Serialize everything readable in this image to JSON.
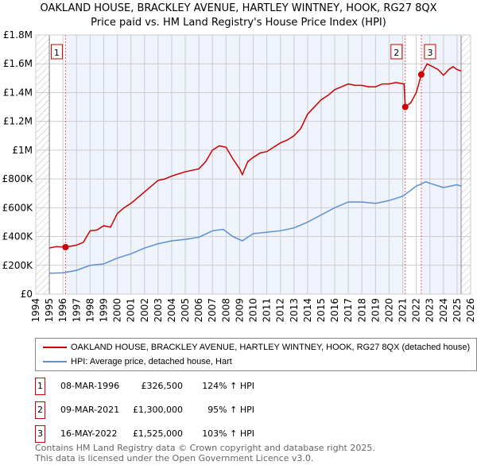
{
  "title": "OAKLAND HOUSE, BRACKLEY AVENUE, HARTLEY WINTNEY, HOOK, RG27 8QX",
  "subtitle": "Price paid vs. HM Land Registry's House Price Index (HPI)",
  "legend": {
    "property": "OAKLAND HOUSE, BRACKLEY AVENUE, HARTLEY WINTNEY, HOOK, RG27 8QX (detached house)",
    "hpi": "HPI: Average price, detached house, Hart"
  },
  "colors": {
    "property": "#cc0000",
    "hpi": "#5b8fd4"
  },
  "sales": [
    {
      "n": "1",
      "date": "08-MAR-1996",
      "price": "£326,500",
      "hpi": "124% ↑ HPI"
    },
    {
      "n": "2",
      "date": "09-MAR-2021",
      "price": "£1,300,000",
      "hpi": "95% ↑ HPI"
    },
    {
      "n": "3",
      "date": "16-MAY-2022",
      "price": "£1,525,000",
      "hpi": "103% ↑ HPI"
    }
  ],
  "footer": [
    "Contains HM Land Registry data © Crown copyright and database right 2025.",
    "This data is licensed under the Open Government Licence v3.0."
  ],
  "chart_data": {
    "type": "line",
    "xlim": [
      1994,
      2026
    ],
    "ylim": [
      0,
      1800000
    ],
    "yticks": [
      0,
      200000,
      400000,
      600000,
      800000,
      1000000,
      1200000,
      1400000,
      1600000,
      1800000
    ],
    "ytick_labels": [
      "£0",
      "£200K",
      "£400K",
      "£600K",
      "£800K",
      "£1M",
      "£1.2M",
      "£1.4M",
      "£1.6M",
      "£1.8M"
    ],
    "xticks": [
      1994,
      1995,
      1996,
      1997,
      1998,
      1999,
      2000,
      2001,
      2002,
      2003,
      2004,
      2005,
      2006,
      2007,
      2008,
      2009,
      2010,
      2011,
      2012,
      2013,
      2014,
      2015,
      2016,
      2017,
      2018,
      2019,
      2020,
      2021,
      2022,
      2023,
      2024,
      2025,
      2026
    ],
    "sale_points": [
      {
        "label": "1",
        "x": 1996.19,
        "y": 326500
      },
      {
        "label": "2",
        "x": 2021.19,
        "y": 1300000
      },
      {
        "label": "3",
        "x": 2022.37,
        "y": 1525000
      }
    ],
    "series": [
      {
        "name": "property",
        "x": [
          1995,
          1995.5,
          1996.19,
          1997,
          1997.5,
          1998,
          1998.5,
          1999,
          1999.5,
          2000,
          2000.5,
          2001,
          2001.5,
          2002,
          2002.5,
          2003,
          2003.5,
          2004,
          2005,
          2006,
          2006.5,
          2007,
          2007.5,
          2008,
          2008.5,
          2009,
          2009.2,
          2009.6,
          2010,
          2010.5,
          2011,
          2011.5,
          2012,
          2012.5,
          2013,
          2013.5,
          2014,
          2014.5,
          2015,
          2015.5,
          2016,
          2016.5,
          2017,
          2017.5,
          2018,
          2018.5,
          2019,
          2019.5,
          2020,
          2020.5,
          2021.1,
          2021.19,
          2021.6,
          2022,
          2022.37,
          2022.8,
          2023.2,
          2023.6,
          2024,
          2024.4,
          2024.7,
          2025,
          2025.3
        ],
        "y": [
          320000,
          330000,
          326500,
          340000,
          360000,
          440000,
          445000,
          475000,
          465000,
          560000,
          600000,
          630000,
          670000,
          710000,
          750000,
          790000,
          800000,
          820000,
          850000,
          870000,
          920000,
          1000000,
          1030000,
          1020000,
          940000,
          870000,
          830000,
          920000,
          950000,
          980000,
          990000,
          1020000,
          1050000,
          1070000,
          1100000,
          1150000,
          1250000,
          1300000,
          1350000,
          1380000,
          1420000,
          1440000,
          1460000,
          1450000,
          1450000,
          1440000,
          1440000,
          1460000,
          1460000,
          1470000,
          1460000,
          1300000,
          1330000,
          1400000,
          1525000,
          1600000,
          1580000,
          1560000,
          1520000,
          1560000,
          1580000,
          1560000,
          1550000
        ]
      },
      {
        "name": "hpi",
        "x": [
          1995,
          1996,
          1997,
          1998,
          1999,
          2000,
          2001,
          2002,
          2003,
          2004,
          2005,
          2006,
          2007,
          2007.8,
          2008.5,
          2009.2,
          2010,
          2011,
          2012,
          2013,
          2014,
          2015,
          2016,
          2017,
          2018,
          2019,
          2020,
          2021,
          2022,
          2022.7,
          2023,
          2024,
          2025,
          2025.3
        ],
        "y": [
          145000,
          148000,
          165000,
          200000,
          210000,
          250000,
          280000,
          320000,
          350000,
          370000,
          380000,
          395000,
          440000,
          450000,
          400000,
          370000,
          420000,
          430000,
          440000,
          460000,
          500000,
          550000,
          600000,
          640000,
          640000,
          630000,
          650000,
          680000,
          750000,
          780000,
          770000,
          740000,
          760000,
          750000
        ]
      }
    ]
  }
}
